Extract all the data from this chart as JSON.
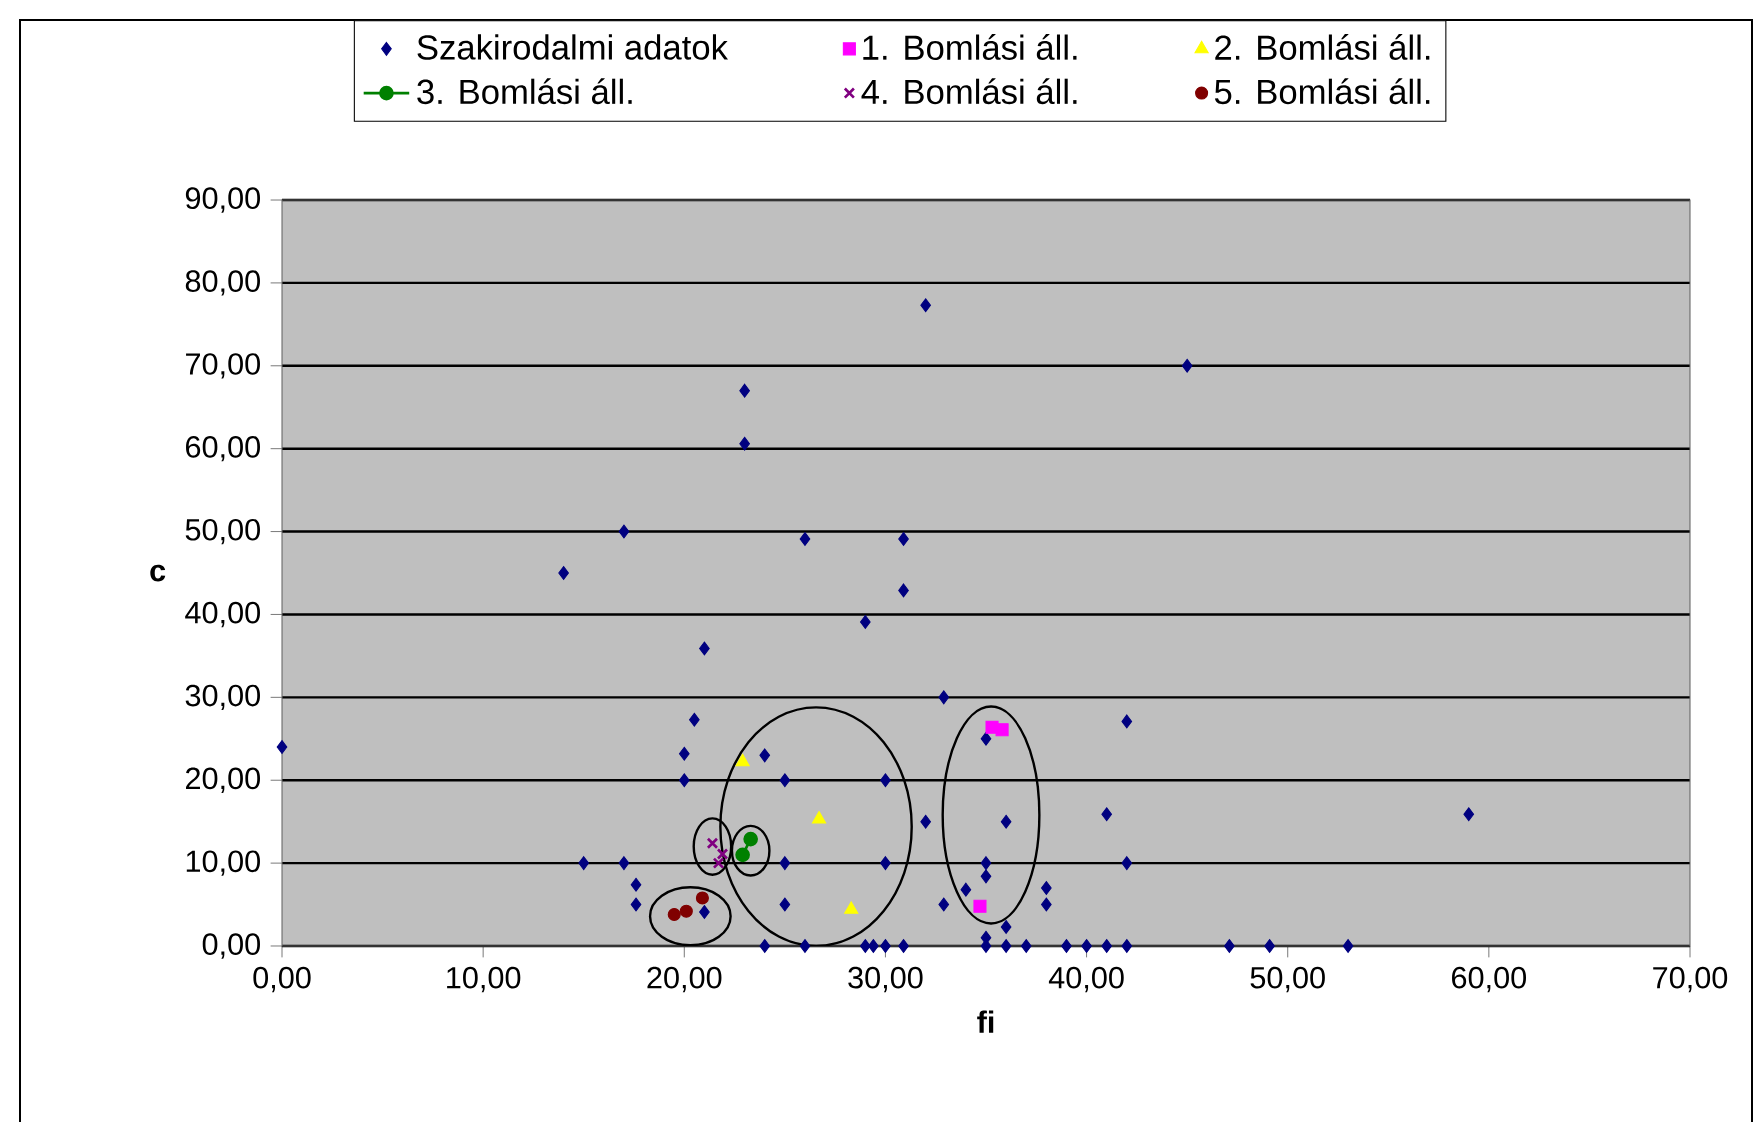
{
  "chart_data": {
    "type": "scatter",
    "xlabel": "fi",
    "ylabel": "c",
    "xlim": [
      0,
      70
    ],
    "ylim": [
      0,
      90
    ],
    "xticks": [
      {
        "value": 0,
        "label": "0,00"
      },
      {
        "value": 10,
        "label": "10,00"
      },
      {
        "value": 20,
        "label": "20,00"
      },
      {
        "value": 30,
        "label": "30,00"
      },
      {
        "value": 40,
        "label": "40,00"
      },
      {
        "value": 50,
        "label": "50,00"
      },
      {
        "value": 60,
        "label": "60,00"
      },
      {
        "value": 70,
        "label": "70,00"
      }
    ],
    "yticks": [
      {
        "value": 0,
        "label": "0,00"
      },
      {
        "value": 10,
        "label": "10,00"
      },
      {
        "value": 20,
        "label": "20,00"
      },
      {
        "value": 30,
        "label": "30,00"
      },
      {
        "value": 40,
        "label": "40,00"
      },
      {
        "value": 50,
        "label": "50,00"
      },
      {
        "value": 60,
        "label": "60,00"
      },
      {
        "value": 70,
        "label": "70,00"
      },
      {
        "value": 80,
        "label": "80,00"
      },
      {
        "value": 90,
        "label": "90,00"
      }
    ],
    "grid": "y",
    "legend": "top",
    "series": [
      {
        "name": "Szakirodalmi adatok",
        "color": "#000080",
        "marker": "diamond",
        "x": [
          0,
          14,
          15,
          17,
          17,
          17.6,
          17.6,
          20,
          20,
          20.5,
          21,
          21,
          23,
          23,
          24,
          24,
          25,
          25,
          25,
          26,
          26,
          29,
          29,
          29.4,
          30,
          30.9,
          30,
          30,
          30.9,
          30.9,
          32,
          32,
          32.9,
          32.9,
          34,
          35,
          35,
          35,
          35,
          35,
          36,
          36,
          36,
          37,
          38,
          38,
          39,
          40,
          41,
          41,
          42,
          42,
          42,
          45,
          47.1,
          49.1,
          53,
          59
        ],
        "values": [
          24,
          45,
          10,
          50,
          10,
          7.4,
          5,
          23.2,
          20,
          27.3,
          35.9,
          4.1,
          67,
          60.6,
          23,
          0,
          20,
          10,
          5,
          49.1,
          0,
          39.1,
          0,
          0,
          0,
          0,
          20,
          10,
          49.1,
          42.9,
          77.3,
          15,
          30,
          5,
          6.8,
          25,
          10,
          8.4,
          1,
          0,
          15,
          2.3,
          0,
          0,
          7,
          5,
          0,
          0,
          15.9,
          0,
          27.1,
          10,
          0,
          70,
          0,
          0,
          0,
          15.9
        ]
      },
      {
        "name": "1. Bomlási áll.",
        "color": "#ff00ff",
        "marker": "square",
        "x": [
          35.3,
          35.8,
          34.7
        ],
        "values": [
          26.4,
          26.1,
          4.8
        ]
      },
      {
        "name": "2. Bomlási áll.",
        "color": "#ffff00",
        "marker": "triangle",
        "x": [
          22.9,
          26.7,
          28.3
        ],
        "values": [
          22.2,
          15.3,
          4.4
        ]
      },
      {
        "name": "3. Bomlási áll.",
        "type": "line",
        "color": "#008000",
        "marker": "circle",
        "x": [
          23.3,
          22.9
        ],
        "values": [
          12.9,
          11
        ]
      },
      {
        "name": "4. Bomlási áll.",
        "color": "#800080",
        "marker": "cross",
        "x": [
          21.4,
          21.9,
          21.7
        ],
        "values": [
          12.4,
          11.1,
          10
        ]
      },
      {
        "name": "5. Bomlási áll.",
        "color": "#800000",
        "marker": "circle",
        "x": [
          19.5,
          20.1,
          20.9
        ],
        "values": [
          3.8,
          4.2,
          5.8
        ]
      }
    ]
  }
}
